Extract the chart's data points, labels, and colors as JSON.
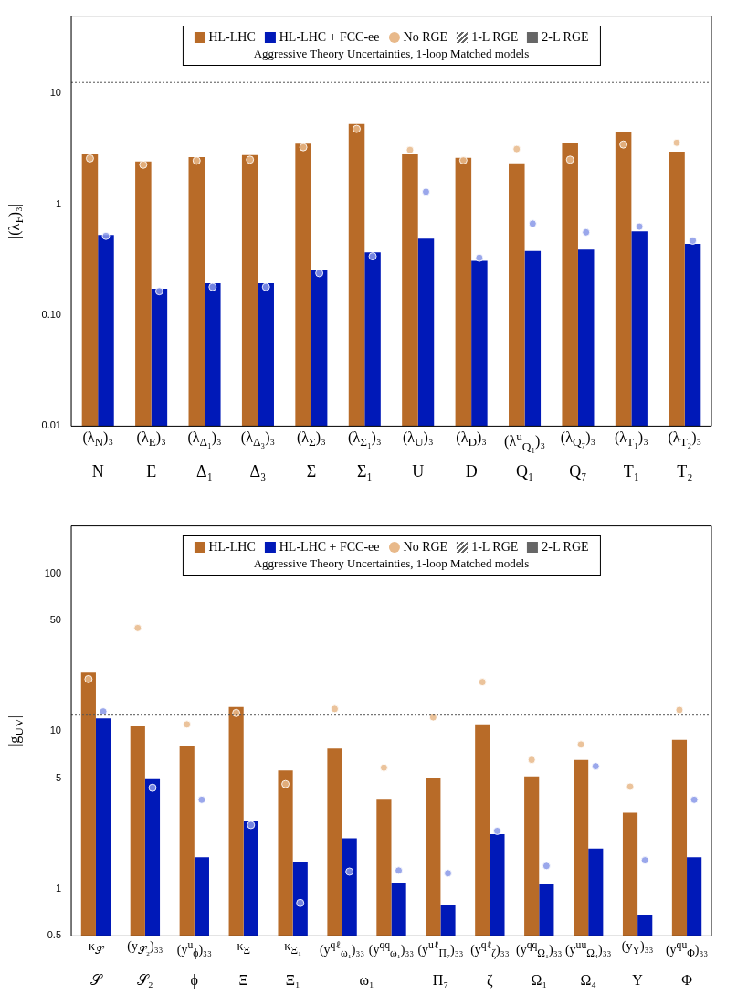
{
  "chart_data": [
    {
      "type": "bar",
      "legend": "top",
      "legend_title": "Aggressive Theory Uncertainties, 1-loop Matched models",
      "ylabel": "|(λ$_{F}$)₃|",
      "log": true,
      "ylim": [
        0.01,
        50
      ],
      "yticks": [
        {
          "value": 0.01,
          "label": "0.01"
        },
        {
          "value": 0.1,
          "label": "0.10"
        },
        1,
        10
      ],
      "categories": [
        "(λ$_{N}$)₃\nN",
        "(λ$_{E}$)₃\nE",
        "(λ$_{Δ₁}$)₃\nΔ₁",
        "(λ$_{Δ₃}$)₃\nΔ₃",
        "(λ$_{Σ}$)₃\nΣ",
        "(λ$_{Σ₁}$)₃\nΣ₁",
        "(λ$_{U}$)₃\nU",
        "(λ$_{D}$)₃\nD",
        "(λ$^{u}$$_{Q₁}$)₃\nQ₁",
        "(λ$_{Q₇}$)₃\nQ₇",
        "(λ$_{T₁}$)₃\nT₁",
        "(λ$_{T₂}$)₃\nT₂"
      ],
      "series": [
        {
          "name": "HL-LHC",
          "color": "#b86b28",
          "values": [
            2.83,
            2.44,
            2.67,
            2.78,
            3.54,
            5.3,
            2.83,
            2.63,
            2.35,
            3.6,
            4.5,
            2.99
          ]
        },
        {
          "name": "HL-LHC + FCC-ee",
          "color": "#0019b8",
          "values": [
            0.53,
            0.174,
            0.195,
            0.195,
            0.258,
            0.37,
            0.49,
            0.31,
            0.38,
            0.39,
            0.57,
            0.44
          ]
        },
        {
          "name": "No RGE",
          "type": "scatter",
          "color": "#e8b98a",
          "values": [
            2.6,
            2.28,
            2.48,
            2.53,
            3.28,
            4.8,
            3.1,
            2.5,
            3.16,
            2.53,
            3.47,
            3.6
          ]
        },
        {
          "type": "scatter",
          "color": "#8898e8",
          "values": [
            0.52,
            0.165,
            0.18,
            0.18,
            0.24,
            0.34,
            1.3,
            0.33,
            0.67,
            0.56,
            0.63,
            0.47
          ]
        }
      ],
      "ref_lines": [
        {
          "axis": "y",
          "value": 12.6,
          "line_style": "dotted",
          "color": "#555555"
        }
      ],
      "annotations": [
        "1-L RGE",
        "2-L RGE"
      ]
    },
    {
      "type": "bar",
      "legend": "top",
      "legend_title": "Aggressive Theory Uncertainties, 1-loop Matched models",
      "ylabel": "|g$_{UV}$|",
      "log": true,
      "ylim": [
        0.5,
        200
      ],
      "yticks": [
        0.5,
        1,
        5,
        10,
        50,
        100
      ],
      "categories": [
        "κ$_{𝒮}$\n𝒮",
        "(y$_{𝒮₂}$)₃₃\n𝒮₂",
        "(y$^{u}$$_{ϕ}$)₃₃\nϕ",
        "κ$_{Ξ}$\nΞ",
        "κ$_{Ξ₁}$\nΞ₁",
        "(y$^{qℓ}$$_{ω₁}$)₃₃\nω₁",
        "(y$^{qq}$$_{ω₁}$)₃₃",
        "(y$^{uℓ}$$_{Π₇}$)₃₃\nΠ₇",
        "(y$^{qℓ}$$_{ζ}$)₃₃\nζ",
        "(y$^{qq}$$_{Ω₁}$)₃₃\nΩ₁",
        "(y$^{uu}$$_{Ω₄}$)₃₃\nΩ₄",
        "(y$_{Υ}$)₃₃\nΥ",
        "(y$^{qu}$$_{Φ}$)₃₃\nΦ"
      ],
      "series": [
        {
          "name": "HL-LHC",
          "color": "#b86b28",
          "values": [
            23.4,
            10.7,
            8.05,
            14.2,
            5.61,
            7.73,
            3.66,
            5.05,
            11.0,
            5.15,
            6.55,
            3.03,
            8.77
          ]
        },
        {
          "name": "HL-LHC + FCC-ee",
          "color": "#0019b8",
          "values": [
            12.0,
            4.95,
            1.58,
            2.67,
            1.48,
            2.08,
            1.09,
            0.79,
            2.21,
            1.06,
            1.79,
            0.68,
            1.58
          ]
        },
        {
          "name": "No RGE",
          "type": "scatter",
          "color": "#e8b98a",
          "values": [
            21.3,
            45,
            11.0,
            13.0,
            4.6,
            13.8,
            5.85,
            12.2,
            20.4,
            6.55,
            8.2,
            4.43,
            13.6
          ]
        },
        {
          "type": "scatter",
          "color": "#8898e8",
          "values": [
            13.3,
            4.36,
            3.66,
            2.53,
            0.81,
            1.28,
            1.3,
            1.25,
            2.32,
            1.39,
            5.97,
            1.51,
            3.66
          ]
        }
      ],
      "ref_lines": [
        {
          "axis": "y",
          "value": 12.6,
          "line_style": "dotted",
          "color": "#555555"
        }
      ],
      "annotations": [
        "1-L RGE",
        "2-L RGE"
      ]
    }
  ]
}
